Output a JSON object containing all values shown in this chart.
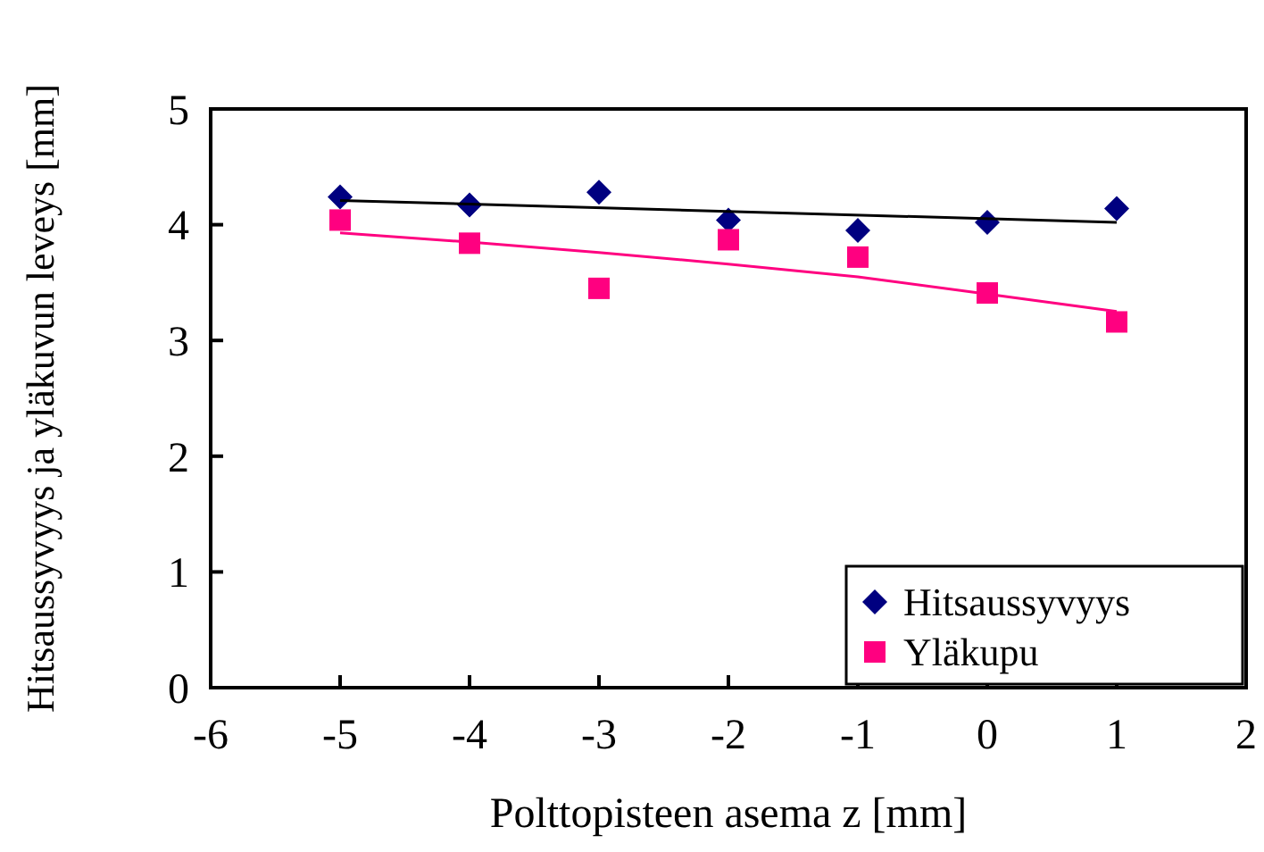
{
  "chart_data": {
    "type": "scatter",
    "xlabel": "Polttopisteen asema z [mm]",
    "ylabel": "Hitsaussyvyys ja yläkuvun leveys [mm]",
    "x": [
      -5,
      -4,
      -3,
      -2,
      -1,
      0,
      1
    ],
    "series": [
      {
        "name": "Hitsaussyvyys",
        "color": "#000080",
        "marker": "diamond",
        "values": [
          4.24,
          4.17,
          4.28,
          4.04,
          3.95,
          4.02,
          4.14
        ]
      },
      {
        "name": "Yläkupu",
        "color": "#ff0080",
        "marker": "square",
        "values": [
          4.04,
          3.84,
          3.45,
          3.87,
          3.72,
          3.41,
          3.16
        ]
      },
      {
        "type": "line",
        "color": "#000000",
        "x": [
          -5,
          1
        ],
        "values": [
          4.21,
          4.02
        ]
      },
      {
        "type": "line",
        "color": "#ff0080",
        "x": [
          -5,
          -4,
          -3,
          -2,
          -1,
          0,
          1
        ],
        "values": [
          3.93,
          3.85,
          3.76,
          3.66,
          3.55,
          3.4,
          3.25
        ]
      }
    ],
    "xlim": [
      -6,
      2
    ],
    "xticks": [
      -6,
      -5,
      -4,
      -3,
      -2,
      -1,
      0,
      1,
      2
    ],
    "ylim": [
      0,
      5
    ],
    "yticks": [
      0,
      1,
      2,
      3,
      4,
      5
    ],
    "grid": false,
    "legend": "bottom right"
  }
}
